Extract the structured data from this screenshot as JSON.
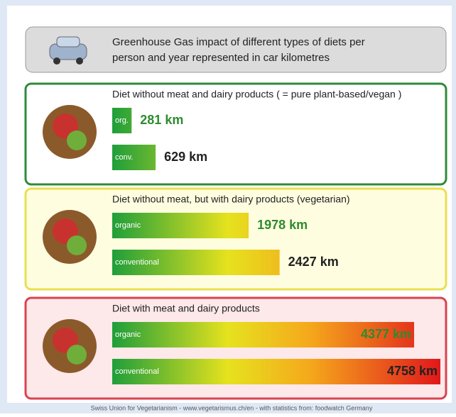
{
  "header": {
    "title_lines": [
      "Greenhouse Gas impact of different types of diets per",
      "person and year represented in car kilometres"
    ]
  },
  "chart_data": [
    {
      "type": "barh",
      "title": "Diet without meat and dairy products ( = pure plant-based/vegan )",
      "categories": [
        "org.",
        "conv."
      ],
      "values": [
        281,
        629
      ],
      "value_labels": [
        "281 km",
        "629 km"
      ],
      "value_label_colors": [
        "#2e8b2e",
        "#222222"
      ],
      "border_color": "#2e8b3a",
      "background": "#ffffff"
    },
    {
      "type": "barh",
      "title": "Diet without meat, but with dairy products (vegetarian)",
      "categories": [
        "organic",
        "conventional"
      ],
      "values": [
        1978,
        2427
      ],
      "value_labels": [
        "1978 km",
        "2427 km"
      ],
      "value_label_colors": [
        "#2e8b2e",
        "#222222"
      ],
      "border_color": "#e8e050",
      "background": "#fffde0"
    },
    {
      "type": "barh",
      "title": "Diet with meat and dairy products",
      "categories": [
        "organic",
        "conventional"
      ],
      "values": [
        4377,
        4758
      ],
      "value_labels": [
        "4377 km",
        "4758 km"
      ],
      "value_label_colors": [
        "#2e8b2e",
        "#222222"
      ],
      "border_color": "#d9434f",
      "background": "#fde8ea"
    }
  ],
  "footer": {
    "text": "Swiss Union for Vegetarianism - www.vegetarismus.ch/en - with statistics from: foodwatch Germany"
  }
}
